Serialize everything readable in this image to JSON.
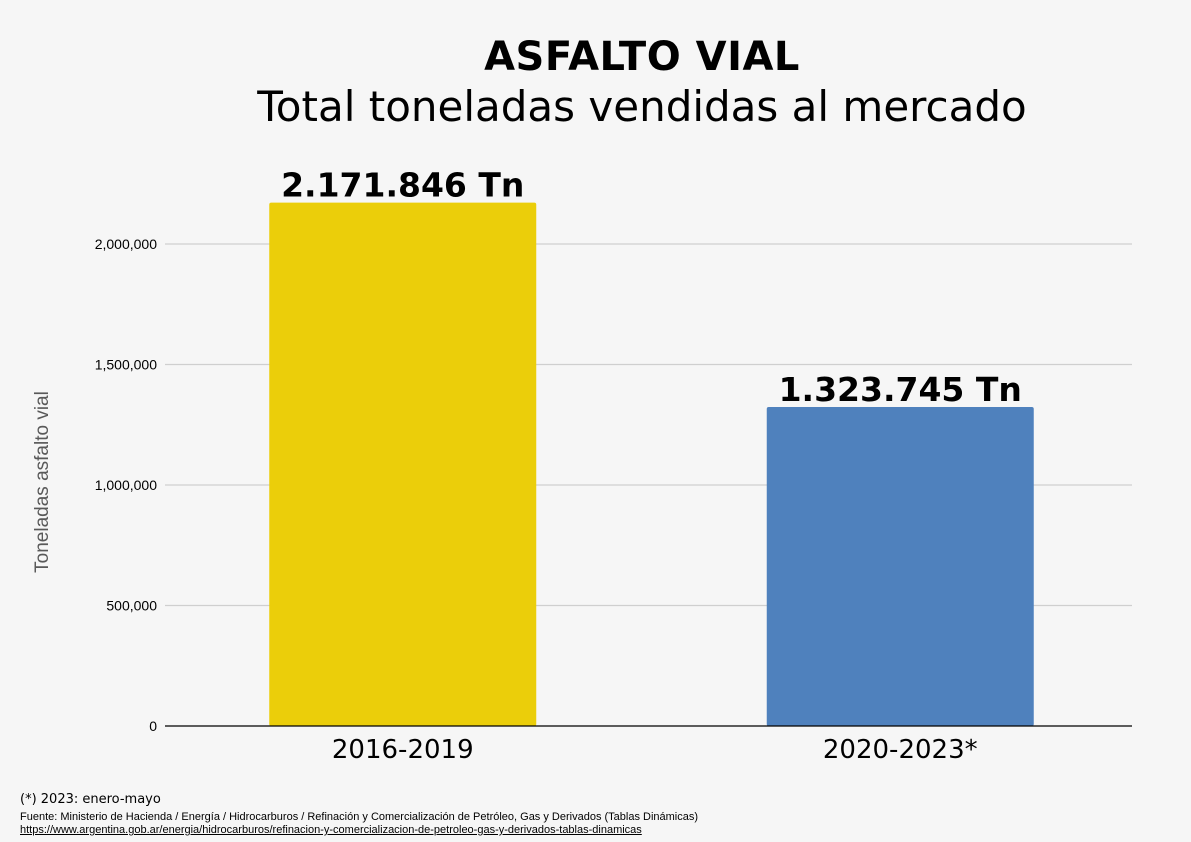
{
  "header": {
    "title": "ASFALTO VIAL",
    "subtitle": "Total toneladas vendidas al mercado"
  },
  "chart_data": {
    "type": "bar",
    "categories": [
      "2016-2019",
      "2020-2023*"
    ],
    "values": [
      2171846,
      1323745
    ],
    "data_labels": [
      "2.171.846 Tn",
      "1.323.745 Tn"
    ],
    "colors": [
      "#ebce0a",
      "#4f81bd"
    ],
    "title": "ASFALTO VIAL",
    "subtitle": "Total toneladas vendidas al mercado",
    "xlabel": "",
    "ylabel": "Toneladas asfalto vial",
    "ylim": [
      0,
      2000000
    ],
    "yticks": [
      0,
      500000,
      1000000,
      1500000,
      2000000
    ],
    "ytick_labels": [
      "0",
      "500,000",
      "1,000,000",
      "1,500,000",
      "2,000,000"
    ],
    "grid": true,
    "legend": "none"
  },
  "footer": {
    "note": "(*) 2023: enero-mayo",
    "source": "Fuente: Ministerio de Hacienda / Energía / Hidrocarburos / Refinación y Comercialización de Petróleo, Gas y Derivados (Tablas Dinámicas)",
    "url": "https://www.argentina.gob.ar/energia/hidrocarburos/refinacion-y-comercializacion-de-petroleo-gas-y-derivados-tablas-dinamicas"
  }
}
